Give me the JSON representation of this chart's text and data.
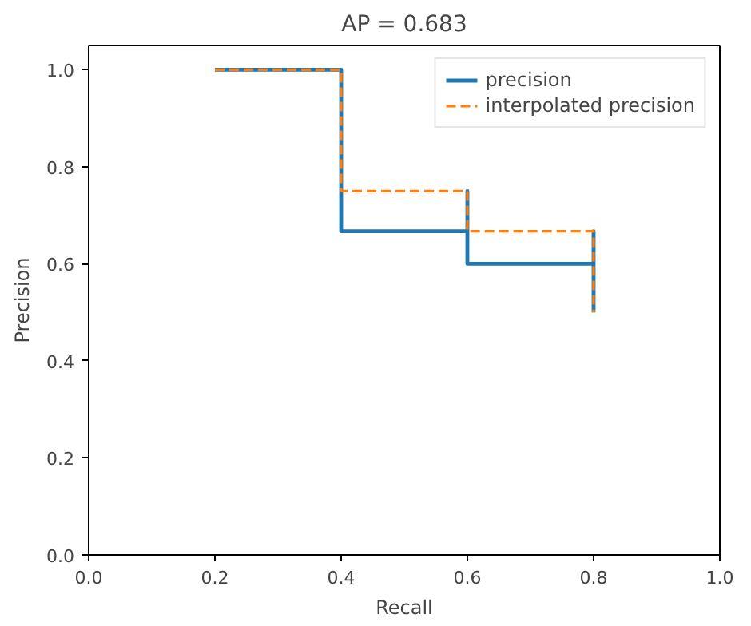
{
  "chart_data": {
    "type": "step",
    "title": "AP = 0.683",
    "xlabel": "Recall",
    "ylabel": "Precision",
    "x": [
      0.2,
      0.4,
      0.4,
      0.6,
      0.6,
      0.8,
      0.8
    ],
    "series": [
      {
        "name": "precision",
        "color": "#1f77b4",
        "line_style": "solid",
        "values": [
          1.0,
          1.0,
          0.667,
          0.75,
          0.6,
          0.667,
          0.5
        ]
      },
      {
        "name": "interpolated precision",
        "color": "#ff7f0e",
        "line_style": "dashed",
        "values": [
          1.0,
          1.0,
          0.75,
          0.75,
          0.667,
          0.667,
          0.5
        ]
      }
    ],
    "xlim": [
      0,
      1
    ],
    "ylim": [
      0,
      1.05
    ],
    "xticks": [
      {
        "value": 0,
        "label": "0.0"
      },
      {
        "value": 0.2,
        "label": "0.2"
      },
      {
        "value": 0.4,
        "label": "0.4"
      },
      {
        "value": 0.6,
        "label": "0.6"
      },
      {
        "value": 0.8,
        "label": "0.8"
      },
      {
        "value": 1,
        "label": "1.0"
      }
    ],
    "yticks": [
      {
        "value": 0,
        "label": "0.0"
      },
      {
        "value": 0.2,
        "label": "0.2"
      },
      {
        "value": 0.4,
        "label": "0.4"
      },
      {
        "value": 0.6,
        "label": "0.6"
      },
      {
        "value": 0.8,
        "label": "0.8"
      },
      {
        "value": 1,
        "label": "1.0"
      }
    ],
    "legend": "top right",
    "grid": false
  }
}
